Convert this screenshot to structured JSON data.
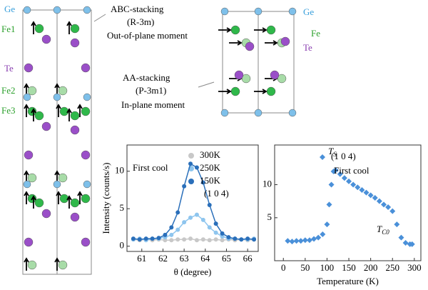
{
  "structures": {
    "abc": {
      "title": "ABC-stacking",
      "group": "(R-3m)",
      "moment": "Out-of-plane moment",
      "labels": [
        "Ge",
        "Fe1",
        "Te",
        "Fe2",
        "Fe3"
      ]
    },
    "aa": {
      "title": "AA-stacking",
      "group": "(P-3m1)",
      "moment": "In-plane moment",
      "labels": [
        "Ge",
        "Fe",
        "Te"
      ]
    }
  },
  "chart_data": [
    {
      "type": "scatter",
      "x_label": "θ (degree)",
      "y_label": "Intensity (counts/s)",
      "annotations": [
        "First cool",
        "(1 0 4)"
      ],
      "x": [
        60.6,
        60.9,
        61.2,
        61.5,
        61.8,
        62.1,
        62.4,
        62.7,
        63.0,
        63.3,
        63.6,
        63.9,
        64.2,
        64.5,
        64.8,
        65.1,
        65.4,
        65.7,
        66.0,
        66.3
      ],
      "series": [
        {
          "name": "300K",
          "color": "#c8c8c8",
          "values": [
            0.9,
            0.8,
            0.9,
            0.8,
            0.9,
            0.8,
            0.8,
            0.9,
            0.9,
            1,
            0.8,
            0.9,
            0.8,
            0.9,
            0.8,
            0.9,
            0.8,
            0.9,
            0.8,
            0.9
          ]
        },
        {
          "name": "250K",
          "color": "#8ec5ee",
          "values": [
            0.9,
            1,
            0.8,
            1,
            1,
            1.2,
            1.5,
            2.2,
            3.2,
            3.8,
            4.2,
            3.5,
            2.5,
            1.8,
            1.3,
            1,
            1,
            0.9,
            0.9,
            1
          ]
        },
        {
          "name": "150K",
          "color": "#2a6fba",
          "values": [
            1,
            0.9,
            1,
            1,
            1.1,
            1.5,
            2.5,
            4.5,
            8,
            11,
            10.5,
            8.5,
            5.5,
            3,
            1.7,
            1.2,
            1,
            0.9,
            1,
            0.9
          ]
        }
      ],
      "xlim": [
        60.3,
        66.5
      ],
      "ylim": [
        -0.7,
        13.5
      ],
      "xticks": [
        61,
        62,
        63,
        64,
        65,
        66
      ],
      "yticks": [
        0,
        5,
        10
      ]
    },
    {
      "type": "scatter",
      "x_label": "Temperature (K)",
      "annotations": [
        "First cool"
      ],
      "markers": [
        {
          "main": "T",
          "sub": "S"
        },
        {
          "main": "T",
          "sub": "C0"
        }
      ],
      "x": [
        10,
        20,
        30,
        40,
        50,
        60,
        70,
        80,
        90,
        100,
        105,
        110,
        115,
        120,
        130,
        140,
        150,
        160,
        170,
        180,
        190,
        200,
        210,
        220,
        230,
        240,
        250,
        260,
        270,
        280,
        290,
        295
      ],
      "series": [
        {
          "name": "(1 0 4)",
          "color": "#4a90d9",
          "values": [
            1.5,
            1.4,
            1.5,
            1.5,
            1.6,
            1.6,
            1.8,
            2,
            2.5,
            4,
            7,
            10,
            12,
            12.2,
            11.6,
            11,
            10.5,
            10,
            9.6,
            9.2,
            8.8,
            8.4,
            8,
            7.5,
            7,
            6.6,
            6,
            4,
            2,
            1.2,
            1,
            1
          ]
        }
      ],
      "xlim": [
        -20,
        315
      ],
      "ylim": [
        -1.5,
        16
      ],
      "xticks": [
        0,
        50,
        100,
        150,
        200,
        250,
        300
      ],
      "yticks": [
        5,
        10
      ]
    }
  ]
}
